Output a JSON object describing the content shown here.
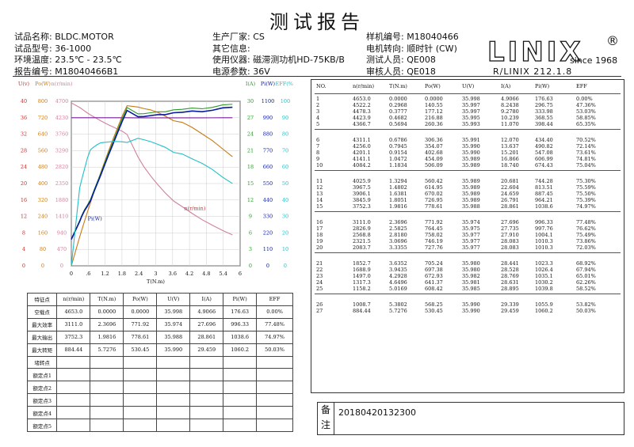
{
  "header": {
    "title": "测试报告"
  },
  "info": {
    "col1": [
      {
        "label": "试品名称:",
        "value": "BLDC.MOTOR"
      },
      {
        "label": "试品型号:",
        "value": "36-1000"
      },
      {
        "label": "环境温度:",
        "value": "23.5℃ - 23.5℃"
      },
      {
        "label": "报告编号:",
        "value": "M18040466B1"
      }
    ],
    "col2": [
      {
        "label": "生产厂家:",
        "value": "CS"
      },
      {
        "label": "其它信息:",
        "value": ""
      },
      {
        "label": "使用仪器:",
        "value": "磁滞测功机HD-75KB/B"
      },
      {
        "label": "电源参数:",
        "value": "36V"
      }
    ],
    "col3": [
      {
        "label": "样机编号:",
        "value": "M18040466"
      },
      {
        "label": "电机转向:",
        "value": "顺时针 (CW)"
      },
      {
        "label": "测试人员:",
        "value": "QE008"
      },
      {
        "label": "审核人员:",
        "value": "QE018"
      }
    ]
  },
  "logo": {
    "brand": "LINIX",
    "registered": "®",
    "since": "since 1968",
    "version": "R/LINIX 212.1.8"
  },
  "colors": {
    "speed": "#0a1aa0",
    "efficiency": "#2a9a2a",
    "current": "#1a5c10",
    "power": "#c87a14",
    "input": "#20c0c8",
    "torque": "#d060a0",
    "axis_red": "#c03030",
    "axis_orange": "#c87a14"
  },
  "chart_data": {
    "type": "line",
    "x": [
      0,
      0.2968,
      0.3777,
      0.4682,
      0.5694,
      0.6786,
      0.7945,
      0.9154,
      1.0472,
      1.1834,
      1.3294,
      1.4802,
      1.6381,
      1.8051,
      1.9816,
      2.3696,
      2.5825,
      2.818,
      3.0696,
      3.3355,
      3.6352,
      3.9435,
      4.2928,
      4.6496,
      5.0169,
      5.3802,
      5.7276
    ],
    "xlabel": "T(N.m)",
    "xlim": [
      0,
      6
    ],
    "xticks": [
      "0",
      ".6",
      "1.2",
      "1.8",
      "2.4",
      "3",
      "3.6",
      "4.2",
      "4.8",
      "5.4",
      "6"
    ],
    "left_axes": [
      {
        "label": "U(v)",
        "color": "#c03030",
        "ticks": [
          "40",
          "36",
          "32",
          "28",
          "24",
          "20",
          "16",
          "12",
          "8",
          "4",
          "0"
        ]
      },
      {
        "label": "Po(W)",
        "color": "#c87a14",
        "ticks": [
          "800",
          "720",
          "640",
          "560",
          "480",
          "400",
          "320",
          "240",
          "160",
          "80",
          "0"
        ]
      },
      {
        "label": "n(r/min)",
        "color": "#d080a0",
        "ticks": [
          "4700",
          "4230",
          "3760",
          "3290",
          "2820",
          "2350",
          "1880",
          "1410",
          "940",
          "470",
          "0"
        ]
      }
    ],
    "right_axes": [
      {
        "label": "I(A)",
        "color": "#2a9a2a",
        "ticks": [
          "30",
          "27",
          "24",
          "21",
          "18",
          "15",
          "12",
          "9",
          "6",
          "3",
          "0"
        ]
      },
      {
        "label": "Pi(W)",
        "color": "#0a1aa0",
        "ticks": [
          "1100",
          "990",
          "880",
          "770",
          "660",
          "550",
          "440",
          "330",
          "220",
          "110",
          "0"
        ]
      },
      {
        "label": "EFF(%)",
        "color": "#20c0c8",
        "ticks": [
          "100",
          "90",
          "80",
          "70",
          "60",
          "50",
          "40",
          "30",
          "20",
          "10",
          "0"
        ]
      }
    ],
    "series": [
      {
        "name": "n(r/min)",
        "axis": "n(r/min)",
        "ymax": 4700,
        "values": [
          4653.0,
          4522.2,
          4478.3,
          4423.9,
          4366.7,
          4311.1,
          4256.0,
          4201.1,
          4141.1,
          4084.2,
          4025.9,
          3967.5,
          3906.1,
          3845.9,
          3752.3,
          3111.0,
          2826.9,
          2568.8,
          2321.5,
          2083.7,
          1852.7,
          1688.9,
          1497.0,
          1317.3,
          1158.2,
          1008.7,
          884.44
        ]
      },
      {
        "name": "Po(W)",
        "axis": "Po(W)",
        "ymax": 800,
        "values": [
          0.0,
          140.55,
          177.12,
          216.88,
          260.36,
          306.36,
          354.07,
          402.68,
          454.09,
          506.09,
          560.42,
          614.95,
          670.02,
          726.95,
          778.61,
          771.92,
          764.45,
          758.02,
          746.19,
          727.76,
          705.24,
          697.38,
          672.93,
          641.37,
          608.42,
          568.25,
          530.45
        ]
      },
      {
        "name": "U(V)",
        "axis": "U(v)",
        "ymax": 40,
        "values": [
          35.998,
          35.997,
          35.997,
          35.995,
          35.993,
          35.991,
          35.99,
          35.99,
          35.989,
          35.989,
          35.989,
          35.989,
          35.989,
          35.989,
          35.988,
          35.974,
          35.975,
          35.977,
          35.977,
          35.977,
          35.98,
          35.98,
          35.982,
          35.981,
          35.985,
          35.99,
          35.99
        ]
      },
      {
        "name": "I(A)",
        "axis": "I(A)",
        "ymax": 30,
        "values": [
          4.9066,
          8.2438,
          9.278,
          10.239,
          11.07,
          12.07,
          13.637,
          15.201,
          16.866,
          18.74,
          20.681,
          22.604,
          24.659,
          26.791,
          28.861,
          27.696,
          27.735,
          27.91,
          28.083,
          28.083,
          28.441,
          28.528,
          28.769,
          28.631,
          28.895,
          29.339,
          29.459
        ]
      },
      {
        "name": "Pi(W)",
        "axis": "Pi(W)",
        "ymax": 1100,
        "values": [
          176.63,
          296.75,
          333.98,
          368.55,
          398.44,
          434.4,
          490.82,
          547.08,
          606.99,
          674.43,
          744.28,
          813.51,
          887.45,
          964.21,
          1038.6,
          996.33,
          997.76,
          1004.1,
          1010.3,
          1010.3,
          1023.3,
          1026.4,
          1035.1,
          1030.2,
          1039.8,
          1055.9,
          1060.2
        ]
      },
      {
        "name": "EFF(%)",
        "axis": "EFF(%)",
        "ymax": 100,
        "values": [
          0.0,
          47.36,
          53.03,
          58.85,
          65.35,
          70.52,
          72.14,
          73.61,
          74.81,
          75.04,
          75.3,
          75.59,
          75.5,
          75.39,
          74.97,
          77.48,
          76.62,
          75.49,
          73.86,
          72.03,
          68.92,
          67.94,
          65.01,
          62.26,
          58.52,
          53.82,
          50.03
        ]
      }
    ],
    "annotations": [
      "Pi(W)",
      "n(r/min)"
    ]
  },
  "data_table": {
    "headers": [
      "NO.",
      "n(r/min)",
      "T(N.m)",
      "Po(W)",
      "U(V)",
      "I(A)",
      "Pi(W)",
      "EFF"
    ],
    "groups": [
      [
        [
          "1",
          "4653.0",
          "0.0000",
          "0.0000",
          "35.998",
          "4.9066",
          "176.63",
          "0.00%"
        ],
        [
          "2",
          "4522.2",
          "0.2968",
          "140.55",
          "35.997",
          "8.2438",
          "296.75",
          "47.36%"
        ],
        [
          "3",
          "4478.3",
          "0.3777",
          "177.12",
          "35.997",
          "9.2780",
          "333.98",
          "53.03%"
        ],
        [
          "4",
          "4423.9",
          "0.4682",
          "216.88",
          "35.995",
          "10.239",
          "368.55",
          "58.85%"
        ],
        [
          "5",
          "4366.7",
          "0.5694",
          "260.36",
          "35.993",
          "11.070",
          "398.44",
          "65.35%"
        ]
      ],
      [
        [
          "6",
          "4311.1",
          "0.6786",
          "306.36",
          "35.991",
          "12.070",
          "434.40",
          "70.52%"
        ],
        [
          "7",
          "4256.0",
          "0.7945",
          "354.07",
          "35.990",
          "13.637",
          "490.82",
          "72.14%"
        ],
        [
          "8",
          "4201.1",
          "0.9154",
          "402.68",
          "35.990",
          "15.201",
          "547.08",
          "73.61%"
        ],
        [
          "9",
          "4141.1",
          "1.0472",
          "454.09",
          "35.989",
          "16.866",
          "606.99",
          "74.81%"
        ],
        [
          "10",
          "4084.2",
          "1.1834",
          "506.09",
          "35.989",
          "18.740",
          "674.43",
          "75.04%"
        ]
      ],
      [
        [
          "11",
          "4025.9",
          "1.3294",
          "560.42",
          "35.989",
          "20.681",
          "744.28",
          "75.30%"
        ],
        [
          "12",
          "3967.5",
          "1.4802",
          "614.95",
          "35.989",
          "22.604",
          "813.51",
          "75.59%"
        ],
        [
          "13",
          "3906.1",
          "1.6381",
          "670.02",
          "35.989",
          "24.659",
          "887.45",
          "75.50%"
        ],
        [
          "14",
          "3845.9",
          "1.8051",
          "726.95",
          "35.989",
          "26.791",
          "964.21",
          "75.39%"
        ],
        [
          "15",
          "3752.3",
          "1.9816",
          "778.61",
          "35.988",
          "28.861",
          "1038.6",
          "74.97%"
        ]
      ],
      [
        [
          "16",
          "3111.0",
          "2.3696",
          "771.92",
          "35.974",
          "27.696",
          "996.33",
          "77.48%"
        ],
        [
          "17",
          "2826.9",
          "2.5825",
          "764.45",
          "35.975",
          "27.735",
          "997.76",
          "76.62%"
        ],
        [
          "18",
          "2568.8",
          "2.8180",
          "758.02",
          "35.977",
          "27.910",
          "1004.1",
          "75.49%"
        ],
        [
          "19",
          "2321.5",
          "3.0696",
          "746.19",
          "35.977",
          "28.083",
          "1010.3",
          "73.86%"
        ],
        [
          "20",
          "2083.7",
          "3.3355",
          "727.76",
          "35.977",
          "28.083",
          "1010.3",
          "72.03%"
        ]
      ],
      [
        [
          "21",
          "1852.7",
          "3.6352",
          "705.24",
          "35.980",
          "28.441",
          "1023.3",
          "68.92%"
        ],
        [
          "22",
          "1688.9",
          "3.9435",
          "697.38",
          "35.980",
          "28.528",
          "1026.4",
          "67.94%"
        ],
        [
          "23",
          "1497.0",
          "4.2928",
          "672.93",
          "35.982",
          "28.769",
          "1035.1",
          "65.01%"
        ],
        [
          "24",
          "1317.3",
          "4.6496",
          "641.37",
          "35.981",
          "28.631",
          "1030.2",
          "62.26%"
        ],
        [
          "25",
          "1158.2",
          "5.0169",
          "608.42",
          "35.985",
          "28.895",
          "1039.8",
          "58.52%"
        ]
      ],
      [
        [
          "26",
          "1008.7",
          "5.3802",
          "568.25",
          "35.990",
          "29.339",
          "1055.9",
          "53.82%"
        ],
        [
          "27",
          "884.44",
          "5.7276",
          "530.45",
          "35.990",
          "29.459",
          "1060.2",
          "50.03%"
        ]
      ]
    ]
  },
  "points_table": {
    "headers": [
      "特征点",
      "n(r/min)",
      "T(N.m)",
      "Po(W)",
      "U(V)",
      "I(A)",
      "Pi(W)",
      "EFF"
    ],
    "rows": [
      [
        "空载点",
        "4653.0",
        "0.0000",
        "0.0000",
        "35.998",
        "4.9066",
        "176.63",
        "0.00%"
      ],
      [
        "最大效率",
        "3111.0",
        "2.3696",
        "771.92",
        "35.974",
        "27.696",
        "996.33",
        "77.48%"
      ],
      [
        "最大输出",
        "3752.3",
        "1.9816",
        "778.61",
        "35.988",
        "28.861",
        "1038.6",
        "74.97%"
      ],
      [
        "最大转矩",
        "884.44",
        "5.7276",
        "530.45",
        "35.990",
        "29.459",
        "1060.2",
        "50.03%"
      ],
      [
        "堵转点",
        "",
        "",
        "",
        "",
        "",
        "",
        ""
      ],
      [
        "额定点1",
        "",
        "",
        "",
        "",
        "",
        "",
        ""
      ],
      [
        "额定点2",
        "",
        "",
        "",
        "",
        "",
        "",
        ""
      ],
      [
        "额定点3",
        "",
        "",
        "",
        "",
        "",
        "",
        ""
      ],
      [
        "额定点4",
        "",
        "",
        "",
        "",
        "",
        "",
        ""
      ],
      [
        "额定点5",
        "",
        "",
        "",
        "",
        "",
        "",
        ""
      ]
    ]
  },
  "note": {
    "label": "备注",
    "value": "20180420132300"
  }
}
